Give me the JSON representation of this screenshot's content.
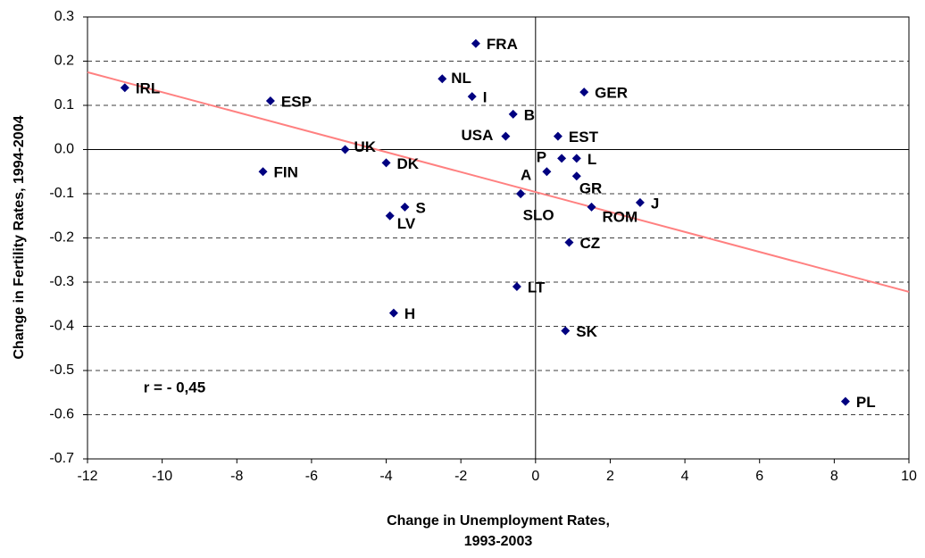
{
  "chart_data": {
    "type": "scatter",
    "x_label": [
      "Change in Unemployment Rates,",
      "1993-2003"
    ],
    "y_label": "Change in Fertility Rates, 1994-2004",
    "annotation": "r = - 0,45",
    "annotation_x": -10.5,
    "annotation_y": -0.54,
    "labels": [
      "IRL",
      "ESP",
      "FRA",
      "NL",
      "I",
      "GER",
      "B",
      "USA",
      "EST",
      "UK",
      "FIN",
      "DK",
      "P",
      null,
      "L",
      "GR",
      "A",
      "SLO",
      "S",
      "LV",
      "J",
      "ROM",
      "CZ",
      "LT",
      "H",
      "SK",
      "PL"
    ],
    "x": [
      -11.0,
      -7.1,
      -1.6,
      -2.5,
      -1.7,
      1.3,
      -0.6,
      -0.8,
      0.6,
      -5.1,
      -7.3,
      -4.0,
      0.3,
      0.7,
      1.1,
      1.1,
      -0.4,
      -0.4,
      -3.5,
      -3.9,
      2.8,
      1.5,
      0.9,
      -0.5,
      -3.8,
      0.8,
      8.3
    ],
    "y": [
      0.14,
      0.11,
      0.24,
      0.16,
      0.12,
      0.13,
      0.08,
      0.03,
      0.03,
      0.0,
      -0.05,
      -0.03,
      -0.05,
      -0.02,
      -0.02,
      -0.06,
      -0.1,
      -0.1,
      -0.13,
      -0.15,
      -0.12,
      -0.13,
      -0.21,
      -0.31,
      -0.37,
      -0.41,
      -0.57
    ],
    "color": "#000080",
    "trendline": {
      "x": [
        -12,
        10
      ],
      "y": [
        0.175,
        -0.322
      ],
      "color": "#ff8080"
    },
    "xlim": [
      -12,
      10
    ],
    "xticks": [
      -12,
      -10,
      -8,
      -6,
      -4,
      -2,
      0,
      2,
      4,
      6,
      8,
      10
    ],
    "ylim": [
      -0.7,
      0.3
    ],
    "yticks": [
      0.3,
      0.2,
      0.1,
      {
        "value": 0,
        "label": "0.0"
      },
      -0.1,
      -0.2,
      -0.3,
      -0.4,
      -0.5,
      -0.6,
      -0.7
    ],
    "grid": true
  }
}
